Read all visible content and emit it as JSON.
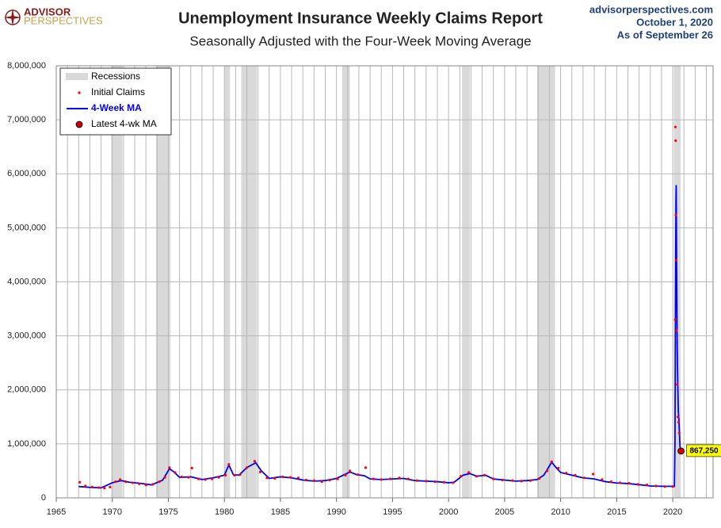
{
  "chart_data": {
    "type": "line",
    "logo": [
      "ADVISOR",
      "PERSPECTIVES"
    ],
    "title": "Unemployment Insurance Weekly Claims Report",
    "subtitle": "Seasonally Adjusted with the Four-Week Moving Average",
    "source": "advisorperspectives.com",
    "date": "October 1, 2020",
    "as_of": "As of September 26",
    "xlim": [
      1965,
      2023.6
    ],
    "ylim": [
      0,
      8000000
    ],
    "xticks": [
      1965,
      1970,
      1975,
      1980,
      1985,
      1990,
      1995,
      2000,
      2005,
      2010,
      2015,
      2020
    ],
    "yticks": [
      0,
      {
        "value": 1000000,
        "label": "1,000,000"
      },
      {
        "value": 2000000,
        "label": "2,000,000"
      },
      {
        "value": 3000000,
        "label": "3,000,000"
      },
      {
        "value": 4000000,
        "label": "4,000,000"
      },
      {
        "value": 5000000,
        "label": "5,000,000"
      },
      {
        "value": 6000000,
        "label": "6,000,000"
      },
      {
        "value": 7000000,
        "label": "7,000,000"
      },
      {
        "value": {
          "value": 8000000
        },
        "label": "8,000,000"
      }
    ],
    "grid": true,
    "recessions": {
      "name": "Recessions",
      "color": "#d9d9d9",
      "periods": [
        [
          1969.9,
          1970.9
        ],
        [
          1973.9,
          1975.2
        ],
        [
          1980.0,
          1980.5
        ],
        [
          1981.5,
          1982.9
        ],
        [
          1990.5,
          1991.2
        ],
        [
          2001.2,
          2001.9
        ],
        [
          2007.9,
          2009.5
        ],
        [
          2020.1,
          2020.7
        ]
      ]
    },
    "series": [
      {
        "name": "Initial Claims",
        "color": "#ff0000",
        "x": [
          1967.1,
          1967.6,
          1968.2,
          1968.8,
          1969.3,
          1969.8,
          1970.3,
          1970.7,
          1971.2,
          1971.8,
          1972.4,
          1973.0,
          1973.6,
          1974.2,
          1974.7,
          1975.1,
          1975.6,
          1976.2,
          1976.8,
          1977.1,
          1977.7,
          1978.3,
          1978.9,
          1979.5,
          1980.1,
          1980.4,
          1980.9,
          1981.4,
          1982.0,
          1982.7,
          1983.2,
          1983.8,
          1984.5,
          1985.2,
          1985.9,
          1986.6,
          1987.3,
          1988.0,
          1988.7,
          1989.4,
          1990.1,
          1990.8,
          1991.2,
          1991.9,
          1992.6,
          1993.3,
          1994.0,
          1994.8,
          1995.6,
          1996.4,
          1997.2,
          1998.0,
          1998.8,
          1999.6,
          2000.4,
          2001.1,
          2001.8,
          2002.5,
          2003.2,
          2004.0,
          2004.8,
          2005.7,
          2006.5,
          2007.3,
          2008.1,
          2008.8,
          2009.2,
          2009.8,
          2010.5,
          2011.3,
          2012.1,
          2012.9,
          2013.7,
          2014.5,
          2015.3,
          2016.1,
          2016.9,
          2017.7,
          2018.5,
          2019.3,
          2020.0,
          2020.22,
          2020.24,
          2020.26,
          2020.28,
          2020.31,
          2020.35,
          2020.4,
          2020.46,
          2020.52,
          2020.58,
          2020.64,
          2020.7
        ],
        "values": [
          290000,
          220000,
          200000,
          190000,
          180000,
          200000,
          300000,
          340000,
          300000,
          280000,
          260000,
          240000,
          250000,
          300000,
          380000,
          560000,
          470000,
          390000,
          380000,
          550000,
          350000,
          340000,
          350000,
          380000,
          420000,
          620000,
          420000,
          430000,
          560000,
          680000,
          480000,
          370000,
          360000,
          390000,
          380000,
          370000,
          330000,
          320000,
          300000,
          330000,
          350000,
          420000,
          500000,
          430000,
          560000,
          350000,
          340000,
          350000,
          370000,
          350000,
          320000,
          310000,
          300000,
          290000,
          280000,
          400000,
          470000,
          400000,
          420000,
          350000,
          330000,
          320000,
          310000,
          320000,
          360000,
          500000,
          670000,
          550000,
          460000,
          420000,
          370000,
          440000,
          340000,
          300000,
          280000,
          270000,
          250000,
          240000,
          220000,
          210000,
          210000,
          3300000,
          6867000,
          6615000,
          5237000,
          4400000,
          3100000,
          2100000,
          1500000,
          1400000,
          1200000,
          880000,
          870000
        ]
      },
      {
        "name": "4-Week MA",
        "color": "#0000ff",
        "x": [
          1967.0,
          1968.0,
          1969.0,
          1970.0,
          1970.8,
          1971.5,
          1972.5,
          1973.5,
          1974.5,
          1975.1,
          1975.5,
          1976.0,
          1977.0,
          1978.0,
          1979.0,
          1980.0,
          1980.4,
          1980.8,
          1981.3,
          1982.0,
          1982.8,
          1983.3,
          1984.0,
          1985.0,
          1986.0,
          1987.0,
          1988.0,
          1989.0,
          1990.0,
          1991.2,
          1991.8,
          1992.5,
          1993.0,
          1994.0,
          1995.0,
          1996.0,
          1997.0,
          1998.0,
          1999.0,
          2000.0,
          2000.5,
          2001.3,
          2001.9,
          2002.5,
          2003.3,
          2004.0,
          2005.0,
          2006.0,
          2007.0,
          2007.9,
          2008.5,
          2009.2,
          2009.6,
          2010.0,
          2011.0,
          2012.0,
          2013.0,
          2014.0,
          2015.0,
          2016.0,
          2017.0,
          2018.0,
          2019.0,
          2020.15,
          2020.2,
          2020.23,
          2020.26,
          2020.29,
          2020.31,
          2020.35,
          2020.4,
          2020.45,
          2020.5,
          2020.55,
          2020.6,
          2020.65,
          2020.74
        ],
        "values": [
          210000,
          195000,
          185000,
          280000,
          320000,
          290000,
          270000,
          240000,
          330000,
          540000,
          480000,
          380000,
          390000,
          340000,
          370000,
          420000,
          610000,
          430000,
          420000,
          560000,
          650000,
          500000,
          360000,
          390000,
          370000,
          330000,
          310000,
          320000,
          360000,
          480000,
          430000,
          410000,
          350000,
          340000,
          350000,
          360000,
          320000,
          310000,
          300000,
          280000,
          290000,
          420000,
          450000,
          400000,
          420000,
          350000,
          330000,
          310000,
          320000,
          340000,
          420000,
          660000,
          560000,
          470000,
          420000,
          370000,
          350000,
          300000,
          275000,
          265000,
          245000,
          220000,
          215000,
          213000,
          1000000,
          2700000,
          4300000,
          5500000,
          5790000,
          4200000,
          2800000,
          2100000,
          1600000,
          1450000,
          1200000,
          950000,
          867250
        ]
      }
    ],
    "latest": {
      "name": "Latest 4-wk MA",
      "color": "#cc0000",
      "x": 2020.74,
      "value": 867250,
      "value_label": "867,250"
    }
  }
}
